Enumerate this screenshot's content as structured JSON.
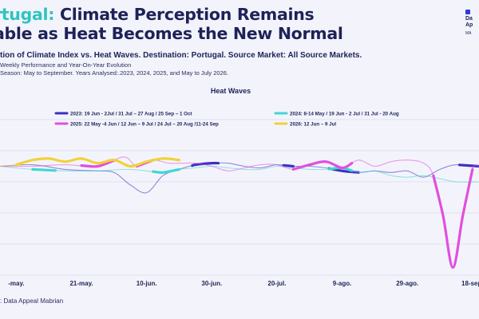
{
  "header": {
    "title_accent": "rtugal:",
    "title_rest": "Climate Perception Remains",
    "title_line2": "able as Heat Becomes the New Normal",
    "subtitle": "tion of Climate Index vs. Heat Waves. Destination: Portugal. Source Market: All Source Markets.",
    "desc_line1": "Weekly Performance and Year-On-Year Evolution",
    "desc_line2": "Season: May to September. Years Analysed:.2023, 2024, 2025, and May to July 2026."
  },
  "logo": {
    "line1": "Da",
    "line2": "Ap",
    "line3": "MA"
  },
  "source": ": Data Appeal Mabrian",
  "colors": {
    "background": "#f3f4fb",
    "s2023": "#3f2fc0",
    "s2024": "#40d6d2",
    "s2025": "#e14fde",
    "s2026": "#f0d23a"
  },
  "chart_data": {
    "type": "line",
    "title": "Heat Waves",
    "xlabel": "",
    "ylabel": "",
    "x_ticks": [
      "-may.",
      "21-may.",
      "10-jun.",
      "30-jun.",
      "20-jul.",
      "9-ago.",
      "29-ago.",
      "18-sep."
    ],
    "x_domain": [
      -5,
      142
    ],
    "ylim": [
      0,
      100
    ],
    "grid": true,
    "legend_position": "top",
    "series": [
      {
        "name": "2023: 19 Jun - 2Jul / 31 Jul – 27 Aug / 25 Sep – 1 Oct",
        "color": "#3f2fc0",
        "x": [
          -5,
          5,
          15,
          25,
          30,
          35,
          40,
          45,
          50,
          55,
          60,
          65,
          70,
          75,
          80,
          85,
          90,
          95,
          100,
          105,
          110,
          115,
          120,
          125,
          130,
          135,
          142
        ],
        "y": [
          70,
          71,
          68,
          67,
          66,
          58,
          53,
          64,
          68,
          71,
          72,
          72,
          70,
          69,
          71,
          70,
          70,
          69,
          67,
          66,
          67,
          66,
          67,
          63,
          68,
          71,
          70
        ],
        "emphasis": [
          [
            54,
            62
          ],
          [
            82,
            85
          ],
          [
            96,
            105
          ],
          [
            136,
            142
          ]
        ]
      },
      {
        "name": "2024: 8-14 May / 19 Jun - 2 Jul / 31 Jul - 20 Aug",
        "color": "#40d6d2",
        "x": [
          -5,
          5,
          15,
          25,
          35,
          45,
          50,
          55,
          60,
          65,
          70,
          75,
          80,
          85,
          90,
          95,
          100,
          105,
          110,
          115,
          120,
          125,
          130,
          135,
          142
        ],
        "y": [
          70,
          68,
          67,
          67,
          68,
          66,
          68,
          69,
          70,
          69,
          68,
          68,
          70,
          69,
          68,
          68,
          69,
          66,
          67,
          64,
          63,
          64,
          62,
          60,
          60
        ],
        "emphasis": [
          [
            5,
            12
          ],
          [
            42,
            50
          ],
          [
            96,
            103
          ]
        ]
      },
      {
        "name": "2025: 22 May -4 Jun / 12 Jun – 9 Jul / 24 Jul – 20 Aug /11-24 Sep",
        "color": "#e14fde",
        "x": [
          -5,
          5,
          15,
          25,
          33,
          37,
          42,
          47,
          55,
          60,
          65,
          70,
          75,
          80,
          85,
          90,
          95,
          100,
          105,
          110,
          115,
          120,
          125,
          128,
          131,
          134,
          137,
          140,
          142
        ],
        "y": [
          70,
          70,
          71,
          70,
          76,
          70,
          74,
          72,
          72,
          70,
          67,
          69,
          71,
          71,
          68,
          71,
          73,
          69,
          74,
          70,
          73,
          74,
          72,
          64,
          38,
          5,
          38,
          68,
          70
        ],
        "emphasis": [
          [
            20,
            30
          ],
          [
            37,
            42
          ],
          [
            85,
            103
          ],
          [
            128,
            140
          ]
        ]
      },
      {
        "name": "2026: 12 Jun – 9 Jul",
        "color": "#f0d23a",
        "x": [
          -5,
          0,
          5,
          10,
          15,
          20,
          25,
          30,
          35,
          40,
          45,
          50
        ],
        "y": [
          70,
          71,
          74,
          75,
          73,
          75,
          72,
          74,
          70,
          73,
          75,
          74
        ],
        "emphasis": [
          [
            0,
            50
          ]
        ]
      }
    ]
  }
}
